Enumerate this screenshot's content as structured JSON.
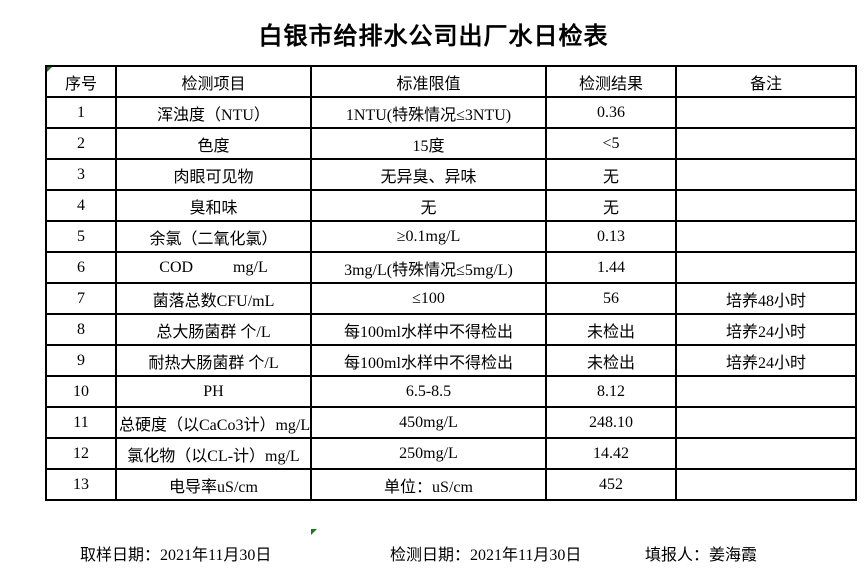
{
  "title": "白银市给排水公司出厂水日检表",
  "table": {
    "headers": [
      "序号",
      "检测项目",
      "标准限值",
      "检测结果",
      "备注"
    ],
    "rows": [
      {
        "no": "1",
        "item": "浑浊度（NTU）",
        "limit": "1NTU(特殊情况≤3NTU)",
        "result": "0.36",
        "remark": ""
      },
      {
        "no": "2",
        "item": "色度",
        "limit": "15度",
        "result": "<5",
        "remark": ""
      },
      {
        "no": "3",
        "item": "肉眼可见物",
        "limit": "无异臭、异味",
        "result": "无",
        "remark": ""
      },
      {
        "no": "4",
        "item": "臭和味",
        "limit": "无",
        "result": "无",
        "remark": ""
      },
      {
        "no": "5",
        "item": "余氯（二氧化氯）",
        "limit": "≥0.1mg/L",
        "result": "0.13",
        "remark": ""
      },
      {
        "no": "6",
        "item": "COD          mg/L",
        "limit": "3mg/L(特殊情况≤5mg/L)",
        "result": "1.44",
        "remark": ""
      },
      {
        "no": "7",
        "item": "菌落总数CFU/mL",
        "limit": "≤100",
        "result": "56",
        "remark": "培养48小时"
      },
      {
        "no": "8",
        "item": "总大肠菌群 个/L",
        "limit": "每100ml水样中不得检出",
        "result": "未检出",
        "remark": "培养24小时"
      },
      {
        "no": "9",
        "item": "耐热大肠菌群 个/L",
        "limit": "每100ml水样中不得检出",
        "result": "未检出",
        "remark": "培养24小时"
      },
      {
        "no": "10",
        "item": "PH",
        "limit": "6.5-8.5",
        "result": "8.12",
        "remark": ""
      },
      {
        "no": "11",
        "item": "总硬度（以CaCo3计）mg/L",
        "limit": "450mg/L",
        "result": "248.10",
        "remark": ""
      },
      {
        "no": "12",
        "item": "氯化物（以CL-计）mg/L",
        "limit": "250mg/L",
        "result": "14.42",
        "remark": ""
      },
      {
        "no": "13",
        "item": "电导率uS/cm",
        "limit": "单位：uS/cm",
        "result": "452",
        "remark": ""
      }
    ]
  },
  "footer": {
    "sampling_date": "取样日期：2021年11月30日",
    "test_date": "检测日期：2021年11月30日",
    "reporter": "填报人：姜海霞"
  },
  "colors": {
    "marker_green": "#1a7a1a",
    "border_black": "#000000"
  }
}
